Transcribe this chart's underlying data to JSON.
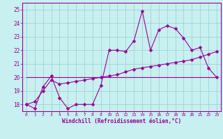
{
  "xlabel": "Windchill (Refroidissement éolien,°C)",
  "bg_color": "#c8f0f0",
  "line_color": "#990099",
  "grid_color": "#99cccc",
  "xlim": [
    -0.5,
    23.5
  ],
  "ylim": [
    17.5,
    25.5
  ],
  "yticks": [
    18,
    19,
    20,
    21,
    22,
    23,
    24,
    25
  ],
  "xticks": [
    0,
    1,
    2,
    3,
    4,
    5,
    6,
    7,
    8,
    9,
    10,
    11,
    12,
    13,
    14,
    15,
    16,
    17,
    18,
    19,
    20,
    21,
    22,
    23
  ],
  "series1_x": [
    0,
    1,
    2,
    3,
    4,
    5,
    6,
    7,
    8,
    9,
    10,
    11,
    12,
    13,
    14,
    15,
    16,
    17,
    18,
    19,
    20,
    21,
    22,
    23
  ],
  "series1_y": [
    18.0,
    17.7,
    19.3,
    20.1,
    18.5,
    17.7,
    18.0,
    18.0,
    18.0,
    19.4,
    22.0,
    22.0,
    21.9,
    22.7,
    24.9,
    22.0,
    23.5,
    23.8,
    23.6,
    22.9,
    22.0,
    22.2,
    20.7,
    20.0
  ],
  "series2_x": [
    0,
    1,
    2,
    3,
    4,
    5,
    6,
    7,
    8,
    9,
    10,
    11,
    12,
    13,
    14,
    15,
    16,
    17,
    18,
    19,
    20,
    21,
    22,
    23
  ],
  "series2_y": [
    18.0,
    18.2,
    19.0,
    19.8,
    19.5,
    19.6,
    19.7,
    19.8,
    19.9,
    20.0,
    20.1,
    20.2,
    20.4,
    20.6,
    20.7,
    20.8,
    20.9,
    21.0,
    21.1,
    21.2,
    21.3,
    21.5,
    21.7,
    21.9
  ],
  "series3_x": [
    0,
    23
  ],
  "series3_y": [
    20.0,
    20.0
  ],
  "marker": "D",
  "markersize": 2.5,
  "linewidth": 0.8
}
